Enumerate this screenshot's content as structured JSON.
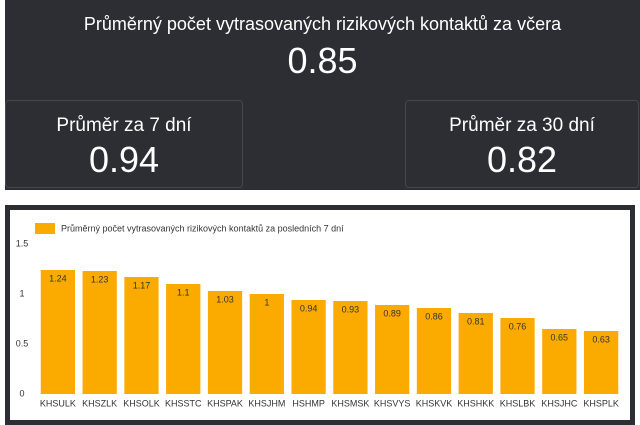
{
  "kpis": {
    "title": "Průměrný počet vytrasovaných rizikových kontaktů za včera",
    "value": 0.85,
    "cards": [
      {
        "title": "Průměr za 7 dní",
        "value": 0.94
      },
      {
        "title": "Průměr za 30 dní",
        "value": 0.82
      }
    ]
  },
  "chart_data": {
    "type": "bar",
    "legend": "Průměrný počet vytrasovaných rizikových kontaktů za posledních 7 dní",
    "categories": [
      "KHSULK",
      "KHSZLK",
      "KHSOLK",
      "KHSSTC",
      "KHSPAK",
      "KHSJHM",
      "HSHMP",
      "KHSMSK",
      "KHSVYS",
      "KHSKVK",
      "KHSHKK",
      "KHSLBK",
      "KHSJHC",
      "KHSPLK"
    ],
    "values": [
      1.24,
      1.23,
      1.17,
      1.1,
      1.03,
      1,
      0.94,
      0.93,
      0.89,
      0.86,
      0.81,
      0.76,
      0.65,
      0.63
    ],
    "color": "#fbab00",
    "ylim": [
      0,
      1.5
    ],
    "yticks": [
      0,
      0.5,
      1,
      1.5
    ],
    "grid": false
  }
}
